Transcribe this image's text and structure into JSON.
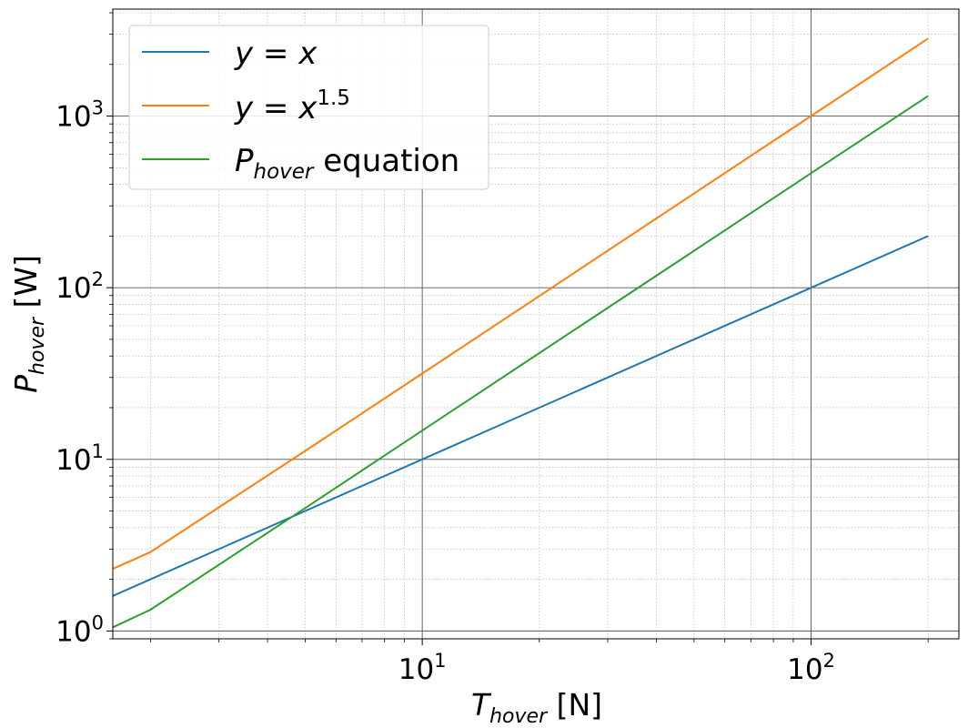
{
  "chart_data": {
    "type": "line",
    "xscale": "log",
    "yscale": "log",
    "xlim": [
      1.6,
      240
    ],
    "ylim": [
      0.9,
      4200
    ],
    "grid": {
      "major": true,
      "minor": true
    },
    "legend_position": "top-left",
    "xlabel": {
      "var": "T",
      "sub": "hover",
      "unit": " [N]"
    },
    "ylabel": {
      "var": "P",
      "sub": "hover",
      "unit": " [W]"
    },
    "x_ticks": [
      {
        "value": 10,
        "base": "10",
        "exp": "1"
      },
      {
        "value": 100,
        "base": "10",
        "exp": "2"
      }
    ],
    "y_ticks": [
      {
        "value": 1,
        "base": "10",
        "exp": "0"
      },
      {
        "value": 10,
        "base": "10",
        "exp": "1"
      },
      {
        "value": 100,
        "base": "10",
        "exp": "2"
      },
      {
        "value": 1000,
        "base": "10",
        "exp": "3"
      }
    ],
    "series": [
      {
        "name": "y = x",
        "color": "#1f77b4",
        "points": [
          [
            1.6,
            1.6
          ],
          [
            2,
            2
          ],
          [
            5,
            5
          ],
          [
            10,
            10
          ],
          [
            20,
            20
          ],
          [
            50,
            50
          ],
          [
            100,
            100
          ],
          [
            200,
            200
          ]
        ]
      },
      {
        "name": "y = x^1.5",
        "color": "#ff7f0e",
        "points": [
          [
            1.6,
            2.3
          ],
          [
            2,
            2.88
          ],
          [
            5,
            11.2
          ],
          [
            10,
            31.6
          ],
          [
            20,
            89.4
          ],
          [
            50,
            354
          ],
          [
            100,
            1000
          ],
          [
            200,
            2830
          ]
        ]
      },
      {
        "name": "P_hover equation",
        "color": "#2ca02c",
        "points": [
          [
            1.6,
            1.05
          ],
          [
            2,
            1.33
          ],
          [
            5,
            5.2
          ],
          [
            10,
            14.7
          ],
          [
            20,
            41.6
          ],
          [
            50,
            164
          ],
          [
            100,
            465
          ],
          [
            200,
            1310
          ]
        ]
      }
    ]
  },
  "legend": {
    "entries": [
      {
        "color": "#1f77b4",
        "parts": [
          "y = x"
        ]
      },
      {
        "color": "#ff7f0e",
        "parts": [
          "y = x",
          "1.5"
        ]
      },
      {
        "color": "#2ca02c",
        "parts": [
          "P",
          "hover",
          " equation"
        ]
      }
    ]
  }
}
